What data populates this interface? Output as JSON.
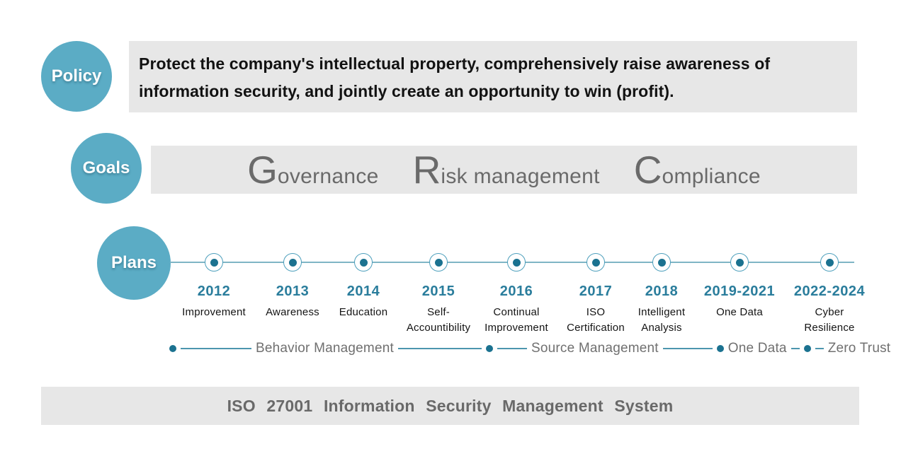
{
  "policy": {
    "label": "Policy",
    "text": "Protect the company's intellectual property, comprehensively raise awareness of information security, and jointly create an opportunity to win (profit)."
  },
  "goals": {
    "label": "Goals",
    "items": [
      {
        "initial": "G",
        "rest": "overnance"
      },
      {
        "initial": "R",
        "rest": "isk management"
      },
      {
        "initial": "C",
        "rest": "ompliance"
      }
    ]
  },
  "plans": {
    "label": "Plans",
    "milestones": [
      {
        "year": "2012",
        "lines": [
          "Improvement"
        ]
      },
      {
        "year": "2013",
        "lines": [
          "Awareness"
        ]
      },
      {
        "year": "2014",
        "lines": [
          "Education"
        ]
      },
      {
        "year": "2015",
        "lines": [
          "Self-",
          "Accountibility"
        ]
      },
      {
        "year": "2016",
        "lines": [
          "Continual",
          "Improvement"
        ]
      },
      {
        "year": "2017",
        "lines": [
          "ISO",
          "Certification"
        ]
      },
      {
        "year": "2018",
        "lines": [
          "Intelligent",
          "Analysis"
        ]
      },
      {
        "year": "2019-2021",
        "lines": [
          "One Data"
        ]
      },
      {
        "year": "2022-2024",
        "lines": [
          "Cyber",
          "Resilience"
        ]
      }
    ]
  },
  "phases": [
    "Behavior Management",
    "Source Management",
    "One Data",
    "Zero Trust"
  ],
  "footer": {
    "text": "ISO 27001 Information Security Management System"
  },
  "colors": {
    "bubble-fill": "#5BACC5",
    "panel-bg": "#E7E7E7",
    "year-color": "#2A7D9C",
    "dot-fill": "#1B7290",
    "ring-stroke": "#4D9FBC",
    "line-color": "#7FB5C5",
    "phase-line-color": "#4C96AE",
    "grc-color": "#6A6A6A",
    "footer-color": "#696969",
    "label-color": "#141414",
    "phase-text-color": "#707070",
    "policy-text": "#121212"
  }
}
